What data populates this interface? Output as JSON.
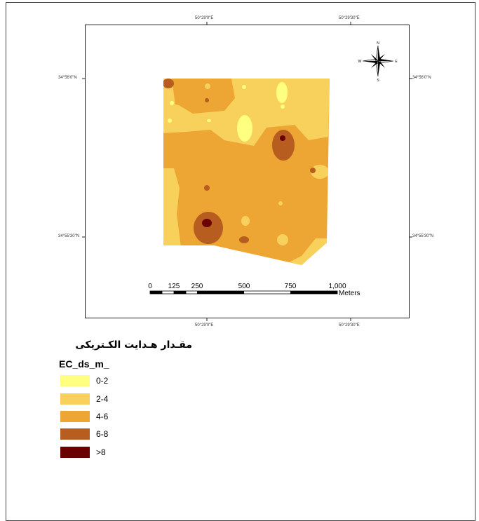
{
  "map": {
    "top_longitudes": [
      "50°29'0\"E",
      "50°29'30\"E"
    ],
    "bottom_longitudes": [
      "50°29'0\"E",
      "50°29'30\"E"
    ],
    "left_latitudes": [
      "34°56'0\"N",
      "34°55'30\"N"
    ],
    "right_latitudes": [
      "34°56'0\"N",
      "34°55'30\"N"
    ],
    "north_arrow": {
      "icon": "compass-rose-icon",
      "labels": {
        "n": "N",
        "s": "S",
        "e": "E",
        "w": "W"
      }
    },
    "scale_bar": {
      "ticks": [
        "0",
        "125",
        "250",
        "500",
        "750",
        "1,000"
      ],
      "unit": "Meters"
    }
  },
  "legend": {
    "title": "مقـدار هـدایت الکـتریکی",
    "field": "EC_ds_m_",
    "classes": [
      {
        "label": "0-2",
        "color": "#ffff80"
      },
      {
        "label": "2-4",
        "color": "#f8d15c"
      },
      {
        "label": "4-6",
        "color": "#eda534"
      },
      {
        "label": "6-8",
        "color": "#b65d1f"
      },
      {
        "label": ">8",
        "color": "#6b0000"
      }
    ]
  }
}
